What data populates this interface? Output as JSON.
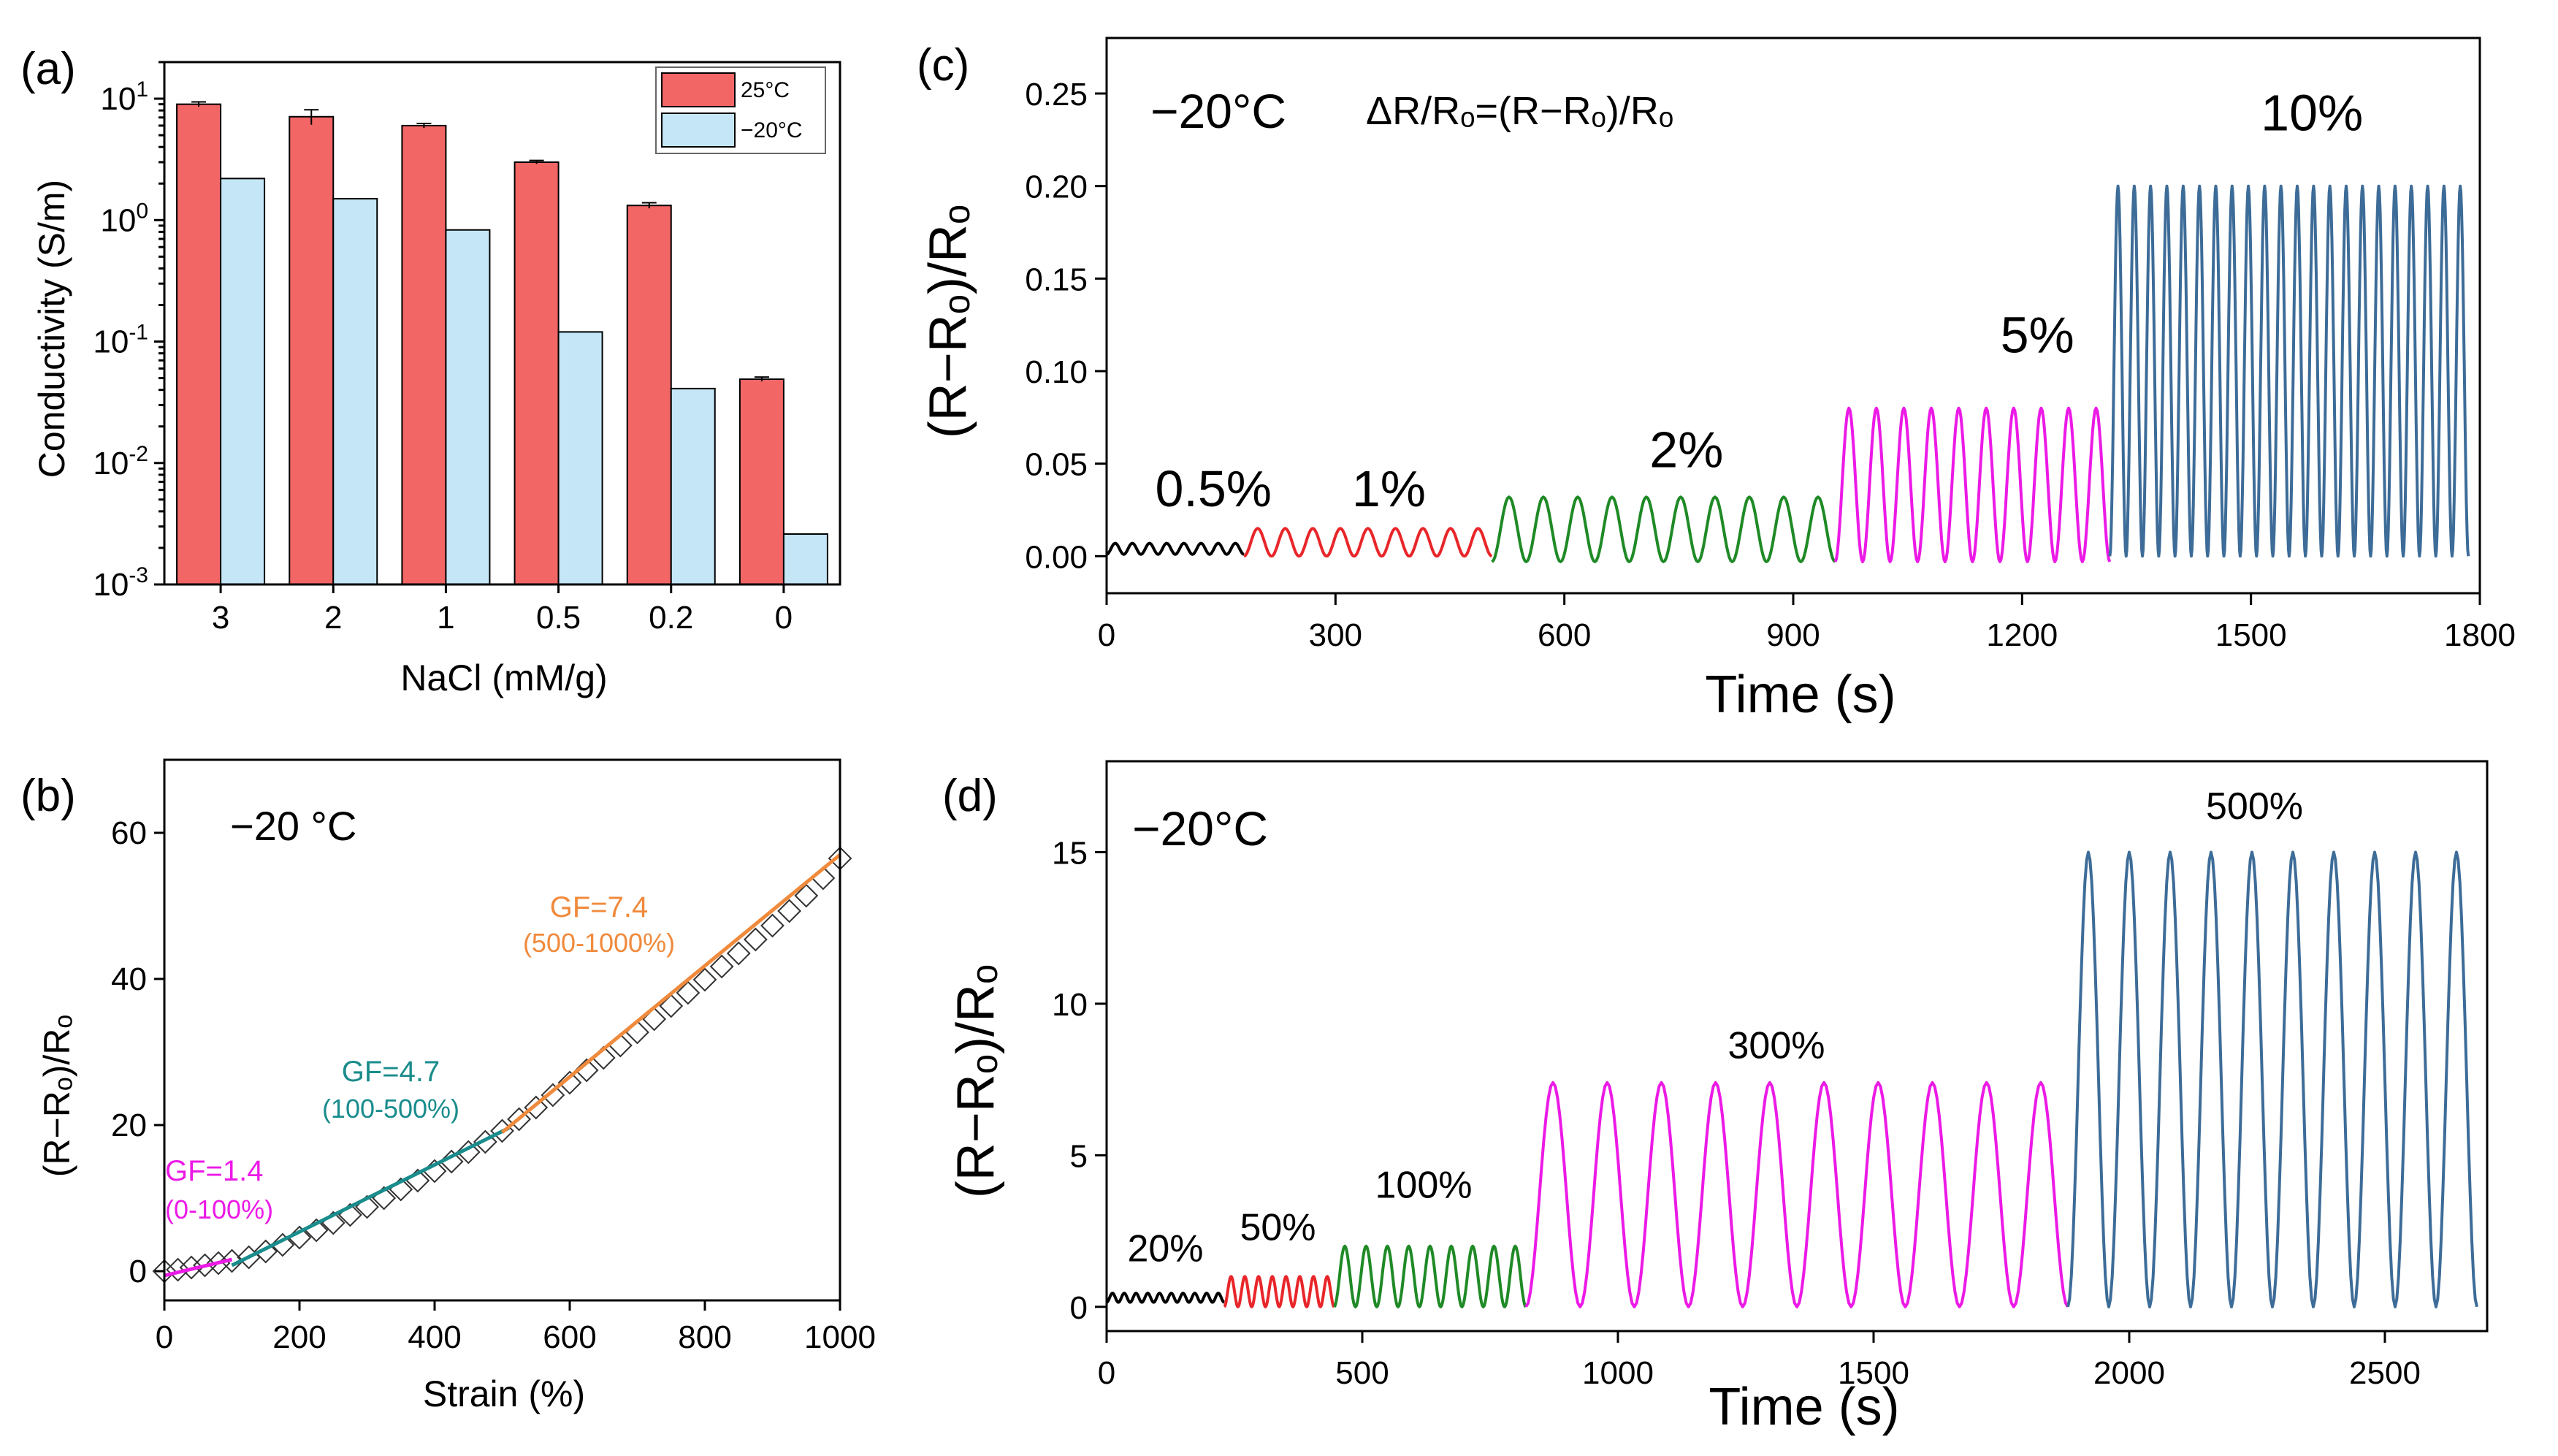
{
  "panel_a": {
    "label": "(a)",
    "ylabel": "Conductivity (S/m)",
    "xlabel": "NaCl (mM/g)",
    "ytick_base": "10",
    "ytick_exps": [
      "-3",
      "-2",
      "-1",
      "0",
      "1"
    ],
    "legend": [
      "25°C",
      "−20°C"
    ]
  },
  "panel_b": {
    "label": "(b)",
    "ylabel": "(R−Rₒ)/Rₒ",
    "xlabel": "Strain (%)",
    "temp": "−20 °C",
    "gf1": "GF=1.4",
    "gf1_range": "(0-100%)",
    "gf2": "GF=4.7",
    "gf2_range": "(100-500%)",
    "gf3": "GF=7.4",
    "gf3_range": "(500-1000%)"
  },
  "panel_c": {
    "label": "(c)",
    "ylabel": "(R−Rₒ)/Rₒ",
    "xlabel": "Time (s)",
    "temp": "−20°C",
    "formula": "ΔR/Rₒ=(R−Rₒ)/Rₒ"
  },
  "panel_d": {
    "label": "(d)",
    "ylabel": "(R−Rₒ)/Rₒ",
    "xlabel": "Time (s)",
    "temp": "−20°C"
  },
  "colors": {
    "red_bar": "#f26666",
    "blue_bar": "#c4e6f6",
    "black": "#000000",
    "red": "#e8262a",
    "green": "#1f8a26",
    "magenta": "#ec1ae6",
    "blue": "#3d6c98",
    "orange": "#f08a3c",
    "teal": "#1a8c8c"
  },
  "chart_data": [
    {
      "id": "a",
      "type": "bar",
      "scale": "log",
      "categories": [
        "3",
        "2",
        "1",
        "0.5",
        "0.2",
        "0"
      ],
      "series": [
        {
          "name": "25°C",
          "values": [
            9.0,
            7.1,
            6.0,
            3.0,
            1.32,
            0.049
          ],
          "errors": [
            0.4,
            1.0,
            0.25,
            0.1,
            0.07,
            0.002
          ]
        },
        {
          "name": "−20°C",
          "values": [
            2.2,
            1.5,
            0.83,
            0.12,
            0.041,
            0.0026
          ]
        }
      ],
      "ylim": [
        0.001,
        20
      ]
    },
    {
      "id": "b",
      "type": "scatter",
      "xlim": [
        0,
        1000
      ],
      "ylim": [
        -4,
        70
      ],
      "xticks": [
        0,
        200,
        400,
        600,
        800,
        1000
      ],
      "yticks": [
        0,
        20,
        40,
        60
      ],
      "points": [
        [
          0,
          0
        ],
        [
          20,
          0.2
        ],
        [
          40,
          0.5
        ],
        [
          60,
          0.8
        ],
        [
          80,
          1.1
        ],
        [
          100,
          1.4
        ],
        [
          125,
          1.9
        ],
        [
          150,
          2.7
        ],
        [
          175,
          3.6
        ],
        [
          200,
          4.6
        ],
        [
          225,
          5.6
        ],
        [
          250,
          6.6
        ],
        [
          275,
          7.7
        ],
        [
          300,
          8.8
        ],
        [
          325,
          10.0
        ],
        [
          350,
          11.2
        ],
        [
          375,
          12.4
        ],
        [
          400,
          13.7
        ],
        [
          425,
          15.0
        ],
        [
          450,
          16.3
        ],
        [
          475,
          17.7
        ],
        [
          500,
          19.2
        ],
        [
          525,
          20.8
        ],
        [
          550,
          22.4
        ],
        [
          575,
          24.1
        ],
        [
          600,
          25.8
        ],
        [
          625,
          27.5
        ],
        [
          650,
          29.2
        ],
        [
          675,
          30.9
        ],
        [
          700,
          32.7
        ],
        [
          725,
          34.5
        ],
        [
          750,
          36.3
        ],
        [
          775,
          38.1
        ],
        [
          800,
          39.9
        ],
        [
          825,
          41.7
        ],
        [
          850,
          43.5
        ],
        [
          875,
          45.4
        ],
        [
          900,
          47.3
        ],
        [
          925,
          49.3
        ],
        [
          950,
          51.4
        ],
        [
          975,
          53.8
        ],
        [
          1000,
          56.5
        ]
      ],
      "fits": [
        {
          "name": "GF=1.4",
          "range": [
            0,
            100
          ],
          "y": [
            -0.6,
            1.6
          ]
        },
        {
          "name": "GF=4.7",
          "range": [
            100,
            510
          ],
          "y": [
            0.8,
            19.6
          ]
        },
        {
          "name": "GF=7.4",
          "range": [
            500,
            1000
          ],
          "y": [
            19.0,
            57.0
          ]
        }
      ]
    },
    {
      "id": "c",
      "type": "line",
      "xlim": [
        0,
        1800
      ],
      "ylim": [
        -0.02,
        0.28
      ],
      "xticks": [
        0,
        300,
        600,
        900,
        1200,
        1500,
        1800
      ],
      "yticks": [
        "0.00",
        "0.05",
        "0.10",
        "0.15",
        "0.20",
        "0.25"
      ],
      "segments": [
        {
          "label": "0.5%",
          "t0": 0,
          "t1": 180,
          "cycles": 8,
          "lo": 0.001,
          "hi": 0.007,
          "color": "black"
        },
        {
          "label": "1%",
          "t0": 180,
          "t1": 505,
          "cycles": 9,
          "lo": 0.0,
          "hi": 0.015,
          "color": "red"
        },
        {
          "label": "2%",
          "t0": 505,
          "t1": 955,
          "cycles": 10,
          "lo": -0.003,
          "hi": 0.032,
          "color": "green"
        },
        {
          "label": "5%",
          "t0": 955,
          "t1": 1315,
          "cycles": 10,
          "lo": -0.003,
          "hi": 0.08,
          "color": "magenta"
        },
        {
          "label": "10%",
          "t0": 1315,
          "t1": 1785,
          "cycles": 22,
          "lo": 0.0,
          "hi": 0.2,
          "color": "blue"
        }
      ]
    },
    {
      "id": "d",
      "type": "line",
      "xlim": [
        0,
        2700
      ],
      "ylim": [
        -0.8,
        18
      ],
      "xticks": [
        0,
        500,
        1000,
        1500,
        2000,
        2500
      ],
      "yticks": [
        0,
        5,
        10,
        15
      ],
      "segments": [
        {
          "label": "20%",
          "t0": 0,
          "t1": 230,
          "cycles": 10,
          "lo": 0.15,
          "hi": 0.45,
          "color": "black"
        },
        {
          "label": "50%",
          "t0": 230,
          "t1": 445,
          "cycles": 8,
          "lo": 0.0,
          "hi": 1.0,
          "color": "red"
        },
        {
          "label": "100%",
          "t0": 445,
          "t1": 820,
          "cycles": 9,
          "lo": 0.0,
          "hi": 2.0,
          "color": "green"
        },
        {
          "label": "300%",
          "t0": 820,
          "t1": 1880,
          "cycles": 10,
          "lo": 0.0,
          "hi": 7.4,
          "color": "magenta"
        },
        {
          "label": "500%",
          "t0": 1880,
          "t1": 2680,
          "cycles": 10,
          "lo": 0.0,
          "hi": 15.0,
          "color": "blue"
        }
      ]
    }
  ]
}
